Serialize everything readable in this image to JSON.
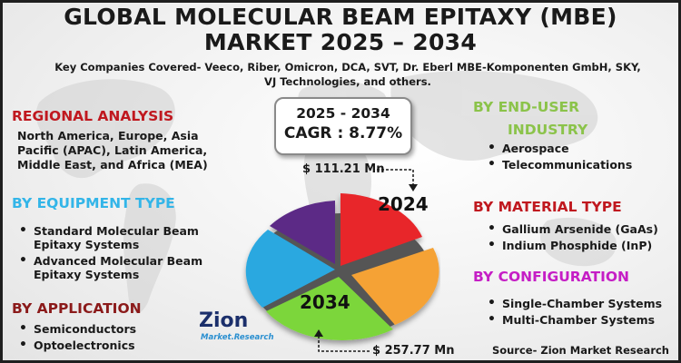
{
  "title": {
    "line1": "GLOBAL MOLECULAR BEAM EPITAXY (MBE)",
    "line2": "MARKET 2025 – 2034"
  },
  "companies": "Key Companies Covered- Veeco, Riber, Omicron, DCA, SVT, Dr. Eberl MBE-Komponenten GmbH, SKY, VJ Technologies, and others.",
  "forecast": {
    "period": "2025 - 2034",
    "cagr": "CAGR : 8.77%",
    "value_2024": "$ 111.21 Mn",
    "value_2034": "$ 257.77 Mn",
    "label_2024": "2024",
    "label_2034": "2034"
  },
  "regional": {
    "heading": "REGIONAL ANALYSIS",
    "text": "North America, Europe, Asia Pacific (APAC), Latin America, Middle East, and Africa (MEA)"
  },
  "equipment": {
    "heading": "BY EQUIPMENT TYPE",
    "items": [
      "Standard Molecular Beam Epitaxy Systems",
      "Advanced Molecular Beam Epitaxy Systems"
    ]
  },
  "application": {
    "heading": "BY APPLICATION",
    "items": [
      "Semiconductors",
      "Optoelectronics"
    ]
  },
  "end_user": {
    "heading_line1": "BY END-USER",
    "heading_line2": "INDUSTRY",
    "items": [
      "Aerospace",
      "Telecommunications"
    ]
  },
  "material": {
    "heading": "BY MATERIAL TYPE",
    "items": [
      "Gallium Arsenide (GaAs)",
      "Indium Phosphide (InP)"
    ]
  },
  "configuration": {
    "heading": "BY CONFIGURATION",
    "items": [
      "Single-Chamber Systems",
      "Multi-Chamber Systems"
    ]
  },
  "logo": {
    "name": "Zion",
    "tagline": "Market.Research"
  },
  "source": "Source- Zion Market Research",
  "colors": {
    "red": "#c0181f",
    "blue": "#33b5e8",
    "maroon": "#8b1a1a",
    "green": "#8bc34a",
    "magenta": "#c51ec5",
    "pie_red": "#e8262b",
    "pie_orange": "#f5a234",
    "pie_green": "#7cd63a",
    "pie_blue": "#2aa8e0",
    "pie_purple": "#5b2a86"
  }
}
